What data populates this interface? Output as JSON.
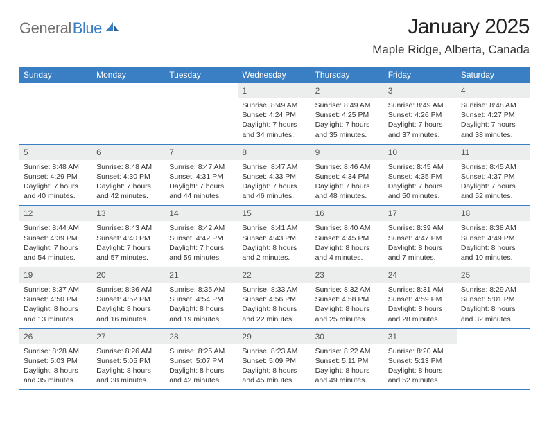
{
  "logo": {
    "text1": "General",
    "text2": "Blue"
  },
  "header": {
    "title": "January 2025",
    "location": "Maple Ridge, Alberta, Canada"
  },
  "colors": {
    "brand_blue": "#3a7fc4",
    "grey_text": "#6e6e6e",
    "day_header_bg": "#eceded",
    "body_text": "#333333",
    "background": "#ffffff"
  },
  "weekdays": [
    "Sunday",
    "Monday",
    "Tuesday",
    "Wednesday",
    "Thursday",
    "Friday",
    "Saturday"
  ],
  "weeks": [
    [
      {
        "n": "",
        "lines": [
          "",
          "",
          "",
          ""
        ]
      },
      {
        "n": "",
        "lines": [
          "",
          "",
          "",
          ""
        ]
      },
      {
        "n": "",
        "lines": [
          "",
          "",
          "",
          ""
        ]
      },
      {
        "n": "1",
        "lines": [
          "Sunrise: 8:49 AM",
          "Sunset: 4:24 PM",
          "Daylight: 7 hours",
          "and 34 minutes."
        ]
      },
      {
        "n": "2",
        "lines": [
          "Sunrise: 8:49 AM",
          "Sunset: 4:25 PM",
          "Daylight: 7 hours",
          "and 35 minutes."
        ]
      },
      {
        "n": "3",
        "lines": [
          "Sunrise: 8:49 AM",
          "Sunset: 4:26 PM",
          "Daylight: 7 hours",
          "and 37 minutes."
        ]
      },
      {
        "n": "4",
        "lines": [
          "Sunrise: 8:48 AM",
          "Sunset: 4:27 PM",
          "Daylight: 7 hours",
          "and 38 minutes."
        ]
      }
    ],
    [
      {
        "n": "5",
        "lines": [
          "Sunrise: 8:48 AM",
          "Sunset: 4:29 PM",
          "Daylight: 7 hours",
          "and 40 minutes."
        ]
      },
      {
        "n": "6",
        "lines": [
          "Sunrise: 8:48 AM",
          "Sunset: 4:30 PM",
          "Daylight: 7 hours",
          "and 42 minutes."
        ]
      },
      {
        "n": "7",
        "lines": [
          "Sunrise: 8:47 AM",
          "Sunset: 4:31 PM",
          "Daylight: 7 hours",
          "and 44 minutes."
        ]
      },
      {
        "n": "8",
        "lines": [
          "Sunrise: 8:47 AM",
          "Sunset: 4:33 PM",
          "Daylight: 7 hours",
          "and 46 minutes."
        ]
      },
      {
        "n": "9",
        "lines": [
          "Sunrise: 8:46 AM",
          "Sunset: 4:34 PM",
          "Daylight: 7 hours",
          "and 48 minutes."
        ]
      },
      {
        "n": "10",
        "lines": [
          "Sunrise: 8:45 AM",
          "Sunset: 4:35 PM",
          "Daylight: 7 hours",
          "and 50 minutes."
        ]
      },
      {
        "n": "11",
        "lines": [
          "Sunrise: 8:45 AM",
          "Sunset: 4:37 PM",
          "Daylight: 7 hours",
          "and 52 minutes."
        ]
      }
    ],
    [
      {
        "n": "12",
        "lines": [
          "Sunrise: 8:44 AM",
          "Sunset: 4:39 PM",
          "Daylight: 7 hours",
          "and 54 minutes."
        ]
      },
      {
        "n": "13",
        "lines": [
          "Sunrise: 8:43 AM",
          "Sunset: 4:40 PM",
          "Daylight: 7 hours",
          "and 57 minutes."
        ]
      },
      {
        "n": "14",
        "lines": [
          "Sunrise: 8:42 AM",
          "Sunset: 4:42 PM",
          "Daylight: 7 hours",
          "and 59 minutes."
        ]
      },
      {
        "n": "15",
        "lines": [
          "Sunrise: 8:41 AM",
          "Sunset: 4:43 PM",
          "Daylight: 8 hours",
          "and 2 minutes."
        ]
      },
      {
        "n": "16",
        "lines": [
          "Sunrise: 8:40 AM",
          "Sunset: 4:45 PM",
          "Daylight: 8 hours",
          "and 4 minutes."
        ]
      },
      {
        "n": "17",
        "lines": [
          "Sunrise: 8:39 AM",
          "Sunset: 4:47 PM",
          "Daylight: 8 hours",
          "and 7 minutes."
        ]
      },
      {
        "n": "18",
        "lines": [
          "Sunrise: 8:38 AM",
          "Sunset: 4:49 PM",
          "Daylight: 8 hours",
          "and 10 minutes."
        ]
      }
    ],
    [
      {
        "n": "19",
        "lines": [
          "Sunrise: 8:37 AM",
          "Sunset: 4:50 PM",
          "Daylight: 8 hours",
          "and 13 minutes."
        ]
      },
      {
        "n": "20",
        "lines": [
          "Sunrise: 8:36 AM",
          "Sunset: 4:52 PM",
          "Daylight: 8 hours",
          "and 16 minutes."
        ]
      },
      {
        "n": "21",
        "lines": [
          "Sunrise: 8:35 AM",
          "Sunset: 4:54 PM",
          "Daylight: 8 hours",
          "and 19 minutes."
        ]
      },
      {
        "n": "22",
        "lines": [
          "Sunrise: 8:33 AM",
          "Sunset: 4:56 PM",
          "Daylight: 8 hours",
          "and 22 minutes."
        ]
      },
      {
        "n": "23",
        "lines": [
          "Sunrise: 8:32 AM",
          "Sunset: 4:58 PM",
          "Daylight: 8 hours",
          "and 25 minutes."
        ]
      },
      {
        "n": "24",
        "lines": [
          "Sunrise: 8:31 AM",
          "Sunset: 4:59 PM",
          "Daylight: 8 hours",
          "and 28 minutes."
        ]
      },
      {
        "n": "25",
        "lines": [
          "Sunrise: 8:29 AM",
          "Sunset: 5:01 PM",
          "Daylight: 8 hours",
          "and 32 minutes."
        ]
      }
    ],
    [
      {
        "n": "26",
        "lines": [
          "Sunrise: 8:28 AM",
          "Sunset: 5:03 PM",
          "Daylight: 8 hours",
          "and 35 minutes."
        ]
      },
      {
        "n": "27",
        "lines": [
          "Sunrise: 8:26 AM",
          "Sunset: 5:05 PM",
          "Daylight: 8 hours",
          "and 38 minutes."
        ]
      },
      {
        "n": "28",
        "lines": [
          "Sunrise: 8:25 AM",
          "Sunset: 5:07 PM",
          "Daylight: 8 hours",
          "and 42 minutes."
        ]
      },
      {
        "n": "29",
        "lines": [
          "Sunrise: 8:23 AM",
          "Sunset: 5:09 PM",
          "Daylight: 8 hours",
          "and 45 minutes."
        ]
      },
      {
        "n": "30",
        "lines": [
          "Sunrise: 8:22 AM",
          "Sunset: 5:11 PM",
          "Daylight: 8 hours",
          "and 49 minutes."
        ]
      },
      {
        "n": "31",
        "lines": [
          "Sunrise: 8:20 AM",
          "Sunset: 5:13 PM",
          "Daylight: 8 hours",
          "and 52 minutes."
        ]
      },
      {
        "n": "",
        "lines": [
          "",
          "",
          "",
          ""
        ]
      }
    ]
  ]
}
